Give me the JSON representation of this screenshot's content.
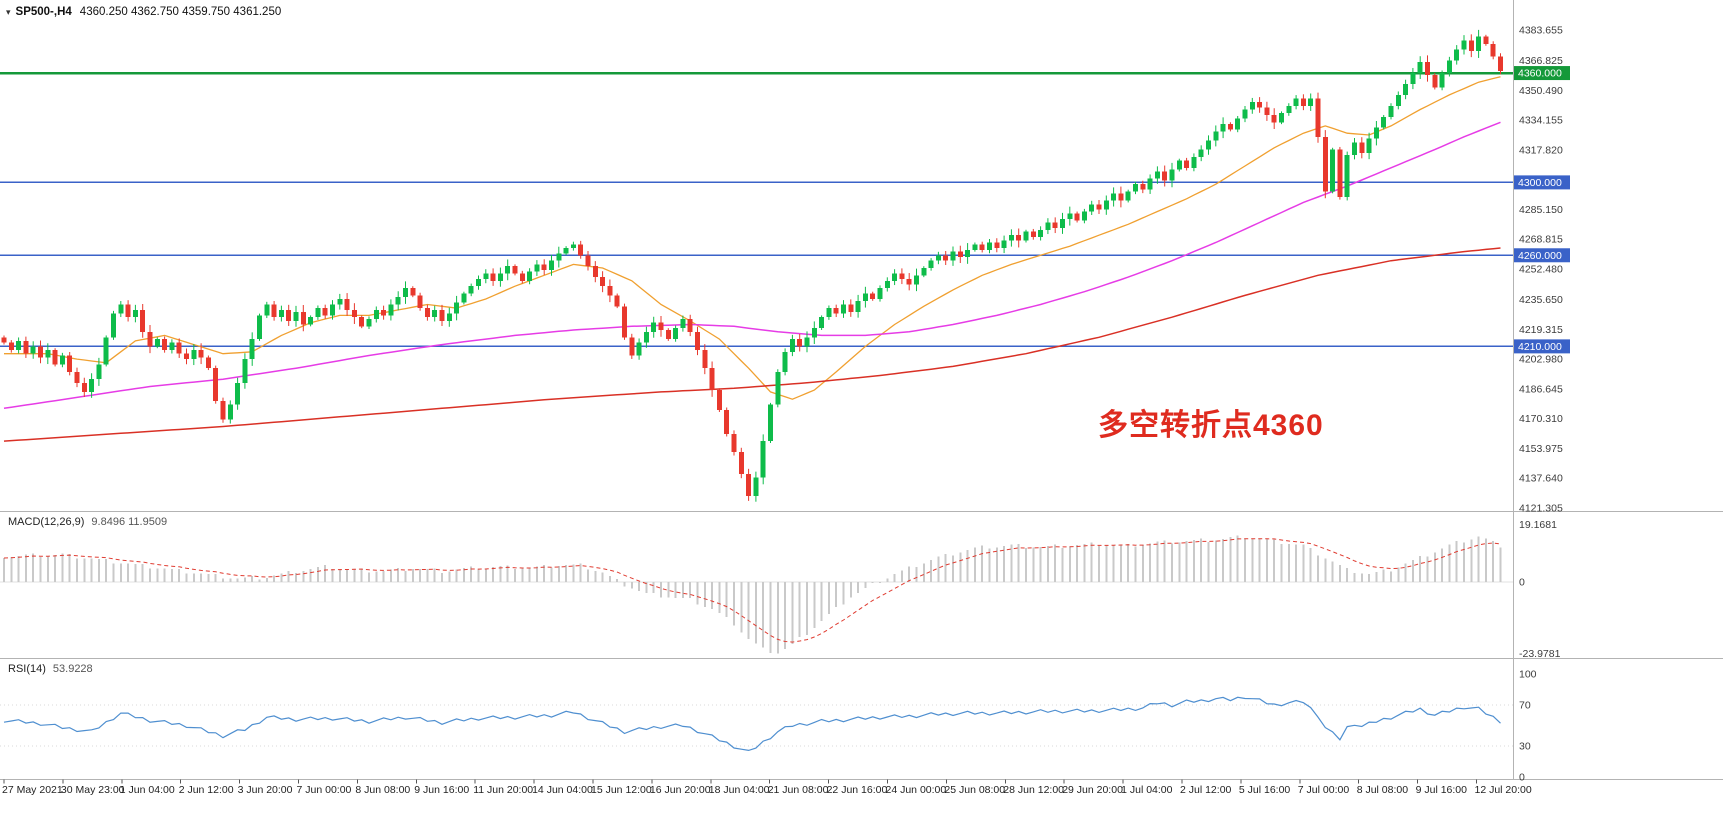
{
  "window": {
    "title_symbol": "SP500-,H4",
    "title_ohlc": "4360.250 4362.750 4359.750 4361.250"
  },
  "annotation": {
    "text": "多空转折点4360",
    "color": "#df2b1f"
  },
  "price_axis": {
    "ticks": [
      "4383.655",
      "4366.825",
      "4350.490",
      "4334.155",
      "4317.820",
      "4285.150",
      "4268.815",
      "4252.480",
      "4235.650",
      "4219.315",
      "4202.980",
      "4186.645",
      "4170.310",
      "4153.975",
      "4137.640",
      "4121.305"
    ],
    "tags": [
      {
        "label": "4360.000",
        "price": 4360.0,
        "bg": "#149939"
      },
      {
        "label": "4300.000",
        "price": 4300.0,
        "bg": "#3a62c8"
      },
      {
        "label": "4260.000",
        "price": 4260.0,
        "bg": "#3a62c8"
      },
      {
        "label": "4210.000",
        "price": 4210.0,
        "bg": "#3a62c8"
      }
    ]
  },
  "chart_data": {
    "type": "candlestick",
    "title": "SP500- H4 candlestick chart with MACD(12,26,9) and RSI(14)",
    "x_labels": [
      "27 May 2021",
      "30 May 23:00",
      "1 Jun 04:00",
      "2 Jun 12:00",
      "3 Jun 20:00",
      "7 Jun 00:00",
      "8 Jun 08:00",
      "9 Jun 16:00",
      "11 Jun 20:00",
      "14 Jun 04:00",
      "15 Jun 12:00",
      "16 Jun 20:00",
      "18 Jun 04:00",
      "21 Jun 08:00",
      "22 Jun 16:00",
      "24 Jun 00:00",
      "25 Jun 08:00",
      "28 Jun 12:00",
      "29 Jun 20:00",
      "1 Jul 04:00",
      "2 Jul 12:00",
      "5 Jul 16:00",
      "7 Jul 00:00",
      "8 Jul 08:00",
      "9 Jul 16:00",
      "12 Jul 20:00"
    ],
    "price_range": {
      "y_top": 4400.1,
      "y_bottom": 4119.1
    },
    "hlines": [
      {
        "price": 4360.0,
        "color": "#149939",
        "label": "4360.000",
        "width": 2.4
      },
      {
        "price": 4300.0,
        "color": "#3a62c8",
        "label": "4300.000",
        "width": 1.4
      },
      {
        "price": 4260.0,
        "color": "#3a62c8",
        "label": "4260.000",
        "width": 1.4
      },
      {
        "price": 4210.0,
        "color": "#3a62c8",
        "label": "4210.000",
        "width": 1.4
      }
    ],
    "candles": {
      "first_open": 4215,
      "closes": [
        4212,
        4208,
        4213,
        4206,
        4210,
        4204,
        4208,
        4200,
        4205,
        4196,
        4190,
        4185,
        4192,
        4200,
        4215,
        4228,
        4233,
        4226,
        4230,
        4218,
        4210,
        4214,
        4208,
        4212,
        4206,
        4203,
        4208,
        4204,
        4198,
        4180,
        4170,
        4178,
        4190,
        4203,
        4214,
        4227,
        4233,
        4226,
        4230,
        4224,
        4229,
        4222,
        4226,
        4231,
        4227,
        4233,
        4236,
        4230,
        4226,
        4221,
        4225,
        4230,
        4227,
        4233,
        4237,
        4242,
        4238,
        4231,
        4226,
        4230,
        4224,
        4228,
        4234,
        4239,
        4243,
        4247,
        4250,
        4246,
        4250,
        4254,
        4250,
        4246,
        4251,
        4255,
        4252,
        4257,
        4261,
        4264,
        4266,
        4260,
        4254,
        4248,
        4243,
        4238,
        4232,
        4215,
        4205,
        4212,
        4218,
        4223,
        4219,
        4214,
        4220,
        4225,
        4218,
        4208,
        4198,
        4186,
        4175,
        4162,
        4152,
        4140,
        4128,
        4138,
        4158,
        4178,
        4196,
        4207,
        4214,
        4210,
        4215,
        4220,
        4226,
        4231,
        4228,
        4233,
        4229,
        4235,
        4239,
        4236,
        4242,
        4246,
        4250,
        4247,
        4244,
        4249,
        4253,
        4257,
        4260,
        4257,
        4262,
        4259,
        4263,
        4266,
        4263,
        4267,
        4264,
        4268,
        4271,
        4268,
        4273,
        4270,
        4274,
        4278,
        4275,
        4280,
        4283,
        4279,
        4284,
        4288,
        4285,
        4290,
        4294,
        4290,
        4295,
        4299,
        4296,
        4302,
        4306,
        4301,
        4307,
        4312,
        4308,
        4314,
        4318,
        4323,
        4328,
        4332,
        4329,
        4335,
        4340,
        4344,
        4341,
        4337,
        4333,
        4338,
        4342,
        4346,
        4342,
        4346,
        4325,
        4295,
        4318,
        4292,
        4315,
        4322,
        4316,
        4324,
        4330,
        4336,
        4342,
        4348,
        4354,
        4360,
        4366,
        4359,
        4352,
        4360,
        4367,
        4373,
        4378,
        4372,
        4380,
        4376,
        4369,
        4361.25
      ]
    },
    "moving_averages": [
      {
        "name": "fast-ma-orange",
        "color": "#f0a030",
        "width": 1.3,
        "waypoints": [
          [
            0,
            4206
          ],
          [
            6,
            4206
          ],
          [
            10,
            4203
          ],
          [
            14,
            4201
          ],
          [
            18,
            4213
          ],
          [
            22,
            4216
          ],
          [
            26,
            4211
          ],
          [
            30,
            4206
          ],
          [
            34,
            4207
          ],
          [
            38,
            4216
          ],
          [
            42,
            4223
          ],
          [
            46,
            4227
          ],
          [
            50,
            4227
          ],
          [
            54,
            4230
          ],
          [
            58,
            4233
          ],
          [
            62,
            4231
          ],
          [
            66,
            4236
          ],
          [
            70,
            4243
          ],
          [
            74,
            4249
          ],
          [
            78,
            4255
          ],
          [
            82,
            4253
          ],
          [
            86,
            4246
          ],
          [
            90,
            4233
          ],
          [
            94,
            4224
          ],
          [
            98,
            4214
          ],
          [
            102,
            4198
          ],
          [
            105,
            4185
          ],
          [
            108,
            4181
          ],
          [
            111,
            4186
          ],
          [
            114,
            4196
          ],
          [
            118,
            4210
          ],
          [
            122,
            4222
          ],
          [
            126,
            4232
          ],
          [
            130,
            4241
          ],
          [
            134,
            4249
          ],
          [
            138,
            4255
          ],
          [
            142,
            4260
          ],
          [
            146,
            4265
          ],
          [
            150,
            4271
          ],
          [
            154,
            4277
          ],
          [
            158,
            4284
          ],
          [
            162,
            4291
          ],
          [
            166,
            4299
          ],
          [
            170,
            4309
          ],
          [
            174,
            4319
          ],
          [
            178,
            4327
          ],
          [
            181,
            4331
          ],
          [
            184,
            4327
          ],
          [
            187,
            4326
          ],
          [
            190,
            4331
          ],
          [
            194,
            4340
          ],
          [
            198,
            4348
          ],
          [
            202,
            4355
          ],
          [
            205,
            4358
          ]
        ]
      },
      {
        "name": "mid-ma-magenta",
        "color": "#e63ce6",
        "width": 1.5,
        "waypoints": [
          [
            0,
            4176
          ],
          [
            10,
            4182
          ],
          [
            20,
            4188
          ],
          [
            30,
            4192
          ],
          [
            40,
            4198
          ],
          [
            50,
            4205
          ],
          [
            60,
            4211
          ],
          [
            70,
            4216
          ],
          [
            78,
            4219
          ],
          [
            86,
            4221
          ],
          [
            94,
            4222
          ],
          [
            100,
            4221
          ],
          [
            106,
            4218
          ],
          [
            112,
            4216
          ],
          [
            118,
            4216
          ],
          [
            124,
            4218
          ],
          [
            130,
            4222
          ],
          [
            136,
            4227
          ],
          [
            142,
            4233
          ],
          [
            148,
            4240
          ],
          [
            154,
            4248
          ],
          [
            160,
            4257
          ],
          [
            166,
            4267
          ],
          [
            172,
            4278
          ],
          [
            178,
            4289
          ],
          [
            184,
            4298
          ],
          [
            190,
            4308
          ],
          [
            196,
            4318
          ],
          [
            200,
            4325
          ],
          [
            205,
            4333
          ]
        ]
      },
      {
        "name": "slow-ma-red",
        "color": "#d93025",
        "width": 1.5,
        "waypoints": [
          [
            0,
            4158
          ],
          [
            15,
            4162
          ],
          [
            30,
            4166
          ],
          [
            45,
            4171
          ],
          [
            60,
            4176
          ],
          [
            75,
            4181
          ],
          [
            90,
            4185
          ],
          [
            100,
            4187
          ],
          [
            110,
            4190
          ],
          [
            120,
            4194
          ],
          [
            130,
            4199
          ],
          [
            140,
            4206
          ],
          [
            150,
            4215
          ],
          [
            160,
            4226
          ],
          [
            170,
            4238
          ],
          [
            180,
            4249
          ],
          [
            190,
            4257
          ],
          [
            200,
            4262
          ],
          [
            205,
            4264
          ]
        ]
      }
    ],
    "macd": {
      "label_name": "MACD(12,26,9)",
      "label_values": "9.8496 11.9509",
      "axis_max": 19.1681,
      "axis_min": -23.9781,
      "axis_labels": {
        "max": "19.1681",
        "zero": "0",
        "min": "-23.9781"
      },
      "waypoints": [
        [
          0,
          8.5
        ],
        [
          8,
          9
        ],
        [
          14,
          7
        ],
        [
          20,
          5
        ],
        [
          26,
          3
        ],
        [
          32,
          1
        ],
        [
          36,
          1.5
        ],
        [
          40,
          3.5
        ],
        [
          44,
          5
        ],
        [
          48,
          4
        ],
        [
          52,
          3.5
        ],
        [
          56,
          4.5
        ],
        [
          60,
          3.5
        ],
        [
          64,
          4.5
        ],
        [
          68,
          5
        ],
        [
          72,
          4.5
        ],
        [
          76,
          5.5
        ],
        [
          79,
          5.5
        ],
        [
          82,
          3
        ],
        [
          85,
          -1
        ],
        [
          88,
          -4
        ],
        [
          91,
          -5
        ],
        [
          94,
          -6
        ],
        [
          97,
          -9
        ],
        [
          100,
          -14
        ],
        [
          102,
          -19
        ],
        [
          104,
          -22.5
        ],
        [
          106,
          -23.5
        ],
        [
          108,
          -21
        ],
        [
          110,
          -17
        ],
        [
          113,
          -11
        ],
        [
          116,
          -5
        ],
        [
          119,
          -1
        ],
        [
          122,
          2.5
        ],
        [
          125,
          5.5
        ],
        [
          128,
          8
        ],
        [
          131,
          10
        ],
        [
          134,
          11.5
        ],
        [
          138,
          12
        ],
        [
          142,
          11.5
        ],
        [
          146,
          12
        ],
        [
          150,
          12.5
        ],
        [
          154,
          12
        ],
        [
          158,
          13
        ],
        [
          162,
          13.5
        ],
        [
          166,
          14
        ],
        [
          170,
          15
        ],
        [
          174,
          13.5
        ],
        [
          178,
          12
        ],
        [
          181,
          8
        ],
        [
          184,
          4
        ],
        [
          187,
          2.5
        ],
        [
          190,
          4
        ],
        [
          193,
          7
        ],
        [
          196,
          10
        ],
        [
          199,
          13
        ],
        [
          202,
          15
        ],
        [
          205,
          12
        ]
      ]
    },
    "rsi": {
      "label_name": "RSI(14)",
      "label_value": "53.9228",
      "axis_labels": [
        "100",
        "70",
        "30",
        "0"
      ],
      "levels": [
        70,
        30
      ],
      "waypoints": [
        [
          0,
          55
        ],
        [
          5,
          52
        ],
        [
          8,
          48
        ],
        [
          12,
          44
        ],
        [
          16,
          62
        ],
        [
          20,
          55
        ],
        [
          25,
          50
        ],
        [
          30,
          40
        ],
        [
          33,
          46
        ],
        [
          36,
          58
        ],
        [
          40,
          56
        ],
        [
          45,
          57
        ],
        [
          50,
          54
        ],
        [
          55,
          58
        ],
        [
          60,
          53
        ],
        [
          65,
          57
        ],
        [
          70,
          58
        ],
        [
          75,
          60
        ],
        [
          78,
          63
        ],
        [
          82,
          52
        ],
        [
          85,
          44
        ],
        [
          88,
          47
        ],
        [
          90,
          49
        ],
        [
          93,
          50
        ],
        [
          95,
          45
        ],
        [
          98,
          36
        ],
        [
          100,
          30
        ],
        [
          102,
          24
        ],
        [
          104,
          34
        ],
        [
          106,
          44
        ],
        [
          108,
          50
        ],
        [
          112,
          54
        ],
        [
          116,
          56
        ],
        [
          120,
          58
        ],
        [
          124,
          59
        ],
        [
          128,
          61
        ],
        [
          132,
          62
        ],
        [
          136,
          62
        ],
        [
          140,
          63
        ],
        [
          144,
          64
        ],
        [
          148,
          64
        ],
        [
          152,
          65
        ],
        [
          156,
          67
        ],
        [
          158,
          72
        ],
        [
          160,
          70
        ],
        [
          162,
          73
        ],
        [
          164,
          74
        ],
        [
          166,
          76
        ],
        [
          168,
          75
        ],
        [
          170,
          78
        ],
        [
          172,
          74
        ],
        [
          174,
          70
        ],
        [
          176,
          72
        ],
        [
          178,
          73
        ],
        [
          180,
          60
        ],
        [
          181,
          48
        ],
        [
          182,
          42
        ],
        [
          183,
          37
        ],
        [
          184,
          48
        ],
        [
          185,
          52
        ],
        [
          186,
          49
        ],
        [
          188,
          54
        ],
        [
          190,
          58
        ],
        [
          192,
          62
        ],
        [
          194,
          66
        ],
        [
          196,
          60
        ],
        [
          198,
          64
        ],
        [
          200,
          68
        ],
        [
          202,
          66
        ],
        [
          204,
          58
        ],
        [
          205,
          54
        ]
      ]
    }
  },
  "colors": {
    "bull": "#0ebc4a",
    "bear": "#e8382d",
    "macd_bar": "#c9c9c9",
    "macd_signal": "#e03c31",
    "rsi_line": "#4f8fd0",
    "axis_text": "#3c3c3c",
    "separator": "#b3b3b3",
    "tag_text": "#ffffff"
  }
}
